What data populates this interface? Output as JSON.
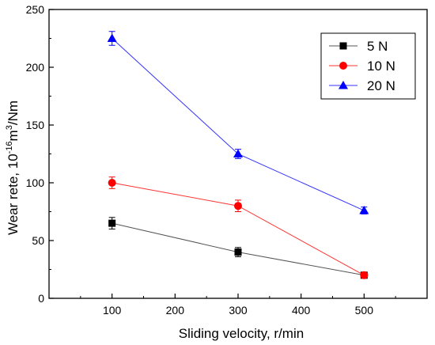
{
  "chart_data": {
    "type": "line",
    "title": "",
    "xlabel": "Sliding velocity, r/min",
    "ylabel": {
      "prefix": "Wear rete, 10",
      "exp1": "-16",
      "mid": "m",
      "exp2": "3",
      "suffix": "/Nm"
    },
    "xlim": [
      0,
      600
    ],
    "ylim": [
      0,
      250
    ],
    "xticks": [
      100,
      200,
      300,
      400,
      500
    ],
    "yticks": [
      0,
      50,
      100,
      150,
      200,
      250
    ],
    "x": [
      100,
      300,
      500
    ],
    "grid": false,
    "legend_position": "top-right",
    "series": [
      {
        "name": "5 N",
        "values": [
          65,
          40,
          20
        ],
        "errors": [
          5,
          4,
          2
        ],
        "color": "#000000",
        "line_color": "#555555",
        "marker": "square"
      },
      {
        "name": "10 N",
        "values": [
          100,
          80,
          20
        ],
        "errors": [
          5,
          5,
          2
        ],
        "color": "#ff0000",
        "line_color": "#ff3333",
        "marker": "circle"
      },
      {
        "name": "20 N",
        "values": [
          225,
          125,
          76
        ],
        "errors": [
          6,
          4,
          3
        ],
        "color": "#0000ff",
        "line_color": "#3333ff",
        "marker": "triangle"
      }
    ]
  }
}
